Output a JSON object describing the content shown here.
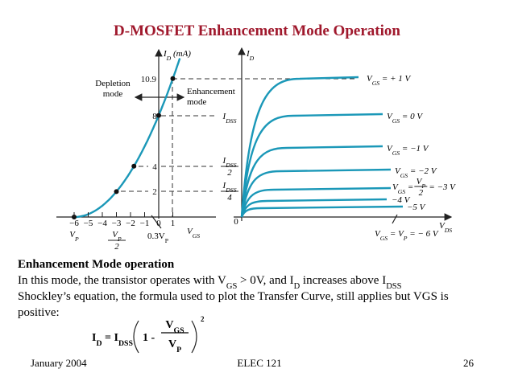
{
  "title": "D-MOSFET Enhancement Mode Operation",
  "figure": {
    "transfer": {
      "y_axis_label": [
        "I",
        {
          "sub": "D"
        },
        " (mA)"
      ],
      "y_tick_labels": [
        "10.9",
        "8",
        "4",
        "2"
      ],
      "x_tick_labels": [
        "−6",
        "−5",
        "−4",
        "−3",
        "−2",
        "−1",
        "0",
        "1"
      ],
      "x_axis_label": [
        "V",
        {
          "sub": "GS"
        }
      ],
      "depletion": [
        "Depletion",
        "mode"
      ],
      "enhancement": [
        "Enhancement",
        "mode"
      ],
      "vp": [
        "V",
        {
          "sub": "P"
        }
      ],
      "vp_half": {
        "num": [
          "V",
          {
            "sub": "P"
          }
        ],
        "den": "2"
      },
      "vp_03": [
        "0.3V",
        {
          "sub": "P"
        }
      ]
    },
    "drain": {
      "y_axis_label": [
        "I",
        {
          "sub": "D"
        }
      ],
      "x_axis_label": [
        "V",
        {
          "sub": "DS"
        }
      ],
      "origin": "0",
      "idss": [
        "I",
        {
          "sub": "DSS"
        }
      ],
      "idss_half": {
        "num": [
          "I",
          {
            "sub": "DSS"
          }
        ],
        "den": "2"
      },
      "idss_quarter": {
        "num": [
          "I",
          {
            "sub": "DSS"
          }
        ],
        "den": "4"
      },
      "curve_labels": [
        [
          "V",
          {
            "sub": "GS"
          },
          " = + 1 V"
        ],
        [
          "V",
          {
            "sub": "GS"
          },
          " = 0 V"
        ],
        [
          "V",
          {
            "sub": "GS"
          },
          " = −1 V"
        ],
        [
          "V",
          {
            "sub": "GS"
          },
          " = −2 V"
        ],
        {
          "before": [
            "V",
            {
              "sub": "GS"
            },
            " = "
          ],
          "num": [
            "V",
            {
              "sub": "P"
            }
          ],
          "den": "2",
          "after": " = −3 V"
        },
        [
          "−4 V"
        ],
        [
          "−5 V"
        ],
        [
          "V",
          {
            "sub": "GS"
          },
          " = V",
          {
            "sub": "P"
          },
          " = − 6 V"
        ]
      ]
    }
  },
  "section": {
    "heading": "Enhancement Mode operation",
    "lines": [
      [
        "In this mode, the transistor operates with V",
        {
          "sub": "GS"
        },
        " > 0V, and I",
        {
          "sub": "D"
        },
        " increases above I",
        {
          "sub": "DSS"
        }
      ],
      [
        "Shockley’s equation, the formula used to plot the Transfer Curve, still applies but VGS is"
      ],
      [
        "positive:"
      ]
    ],
    "equation": {
      "lhs": [
        "I",
        {
          "sub": "D"
        },
        " = I",
        {
          "sub": "DSS"
        }
      ],
      "one": "1 -",
      "num": [
        "V",
        {
          "sub": "GS"
        }
      ],
      "den": [
        "V",
        {
          "sub": "P"
        }
      ],
      "power": "2"
    }
  },
  "footer": {
    "date": "January 2004",
    "course": "ELEC 121",
    "page": "26"
  }
}
